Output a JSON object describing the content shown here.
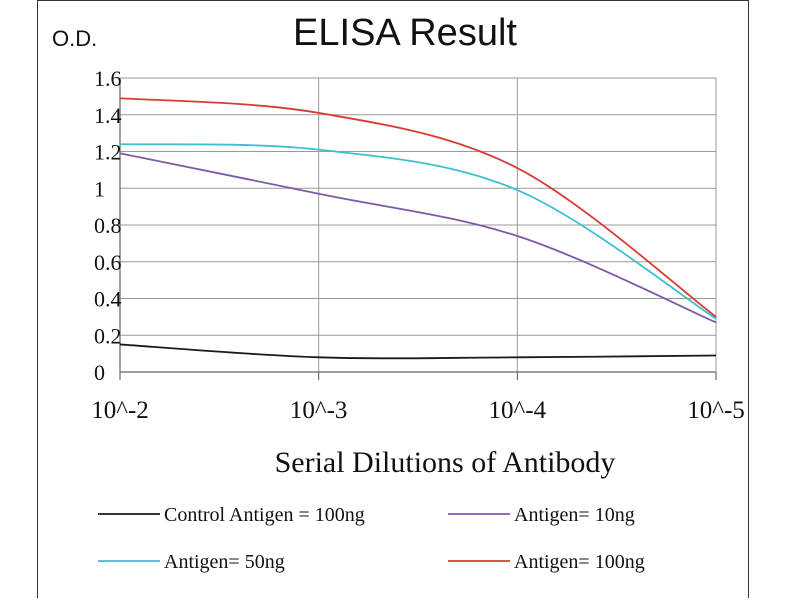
{
  "chart_data": {
    "type": "line",
    "title": "ELISA Result",
    "ylabel": "O.D.",
    "xlabel": "Serial  Dilutions  of Antibody",
    "categories": [
      "10^-2",
      "10^-3",
      "10^-4",
      "10^-5"
    ],
    "ylim": [
      0,
      1.6
    ],
    "yticks": [
      "0",
      "0.2",
      "0.4",
      "0.6",
      "0.8",
      "1",
      "1.2",
      "1.4",
      "1.6"
    ],
    "grid": true,
    "legend_position": "bottom",
    "series": [
      {
        "name": "Control Antigen = 100ng",
        "color": "#1a1a1a",
        "values": [
          0.15,
          0.08,
          0.08,
          0.09
        ]
      },
      {
        "name": "Antigen= 10ng",
        "color": "#7b5aa6",
        "values": [
          1.19,
          0.97,
          0.74,
          0.27
        ]
      },
      {
        "name": "Antigen= 50ng",
        "color": "#3fbfd0",
        "values": [
          1.24,
          1.21,
          0.99,
          0.29
        ]
      },
      {
        "name": "Antigen= 100ng",
        "color": "#d93a34",
        "values": [
          1.49,
          1.41,
          1.11,
          0.3
        ]
      }
    ]
  }
}
